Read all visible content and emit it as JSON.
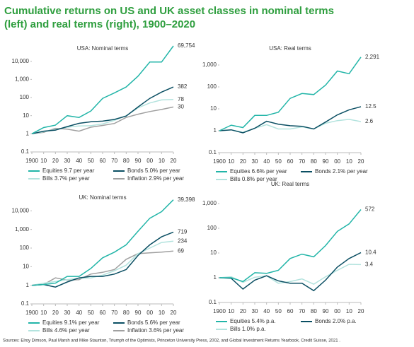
{
  "title": [
    "Cumulative returns on US and UK asset classes in nominal terms",
    "(left) and real terms (right), 1900–2020"
  ],
  "source": "Sources: Elroy Dimson, Paul Marsh and Mike Staunton, Triumph of the Optimists, Princeton University Press, 2002, and Global Investment Returns Yearbook, Credit Suisse, 2021 .",
  "chart_data": [
    {
      "type": "line",
      "title": "USA: Nominal terms",
      "log_scale": true,
      "x": [
        1900,
        1910,
        1920,
        1930,
        1940,
        1950,
        1960,
        1970,
        1980,
        1990,
        2000,
        2010,
        2020
      ],
      "xlim": [
        1900,
        2020
      ],
      "xticks": [
        {
          "value": 1900,
          "label": "1900"
        },
        {
          "value": 1910,
          "label": "10"
        },
        {
          "value": 1920,
          "label": "20"
        },
        {
          "value": 1930,
          "label": "30"
        },
        {
          "value": 1940,
          "label": "40"
        },
        {
          "value": 1950,
          "label": "50"
        },
        {
          "value": 1960,
          "label": "60"
        },
        {
          "value": 1970,
          "label": "70"
        },
        {
          "value": 1980,
          "label": "80"
        },
        {
          "value": 1990,
          "label": "90"
        },
        {
          "value": 2000,
          "label": "00"
        },
        {
          "value": 2010,
          "label": "10"
        },
        {
          "value": 2020,
          "label": "20"
        }
      ],
      "ylim": [
        0.1,
        100000
      ],
      "yticks": [
        0.1,
        1,
        10,
        100,
        {
          "value": 1000,
          "label": "1,000"
        },
        {
          "value": 10000,
          "label": "10,000"
        }
      ],
      "series": [
        {
          "name": "Equities  9.7 per year",
          "color": "#22b5a8",
          "values": [
            1,
            2.2,
            3,
            10,
            8,
            18,
            90,
            180,
            380,
            1500,
            9000,
            9000,
            69754
          ],
          "value_labels": [
            null,
            null,
            null,
            null,
            null,
            null,
            null,
            null,
            null,
            null,
            null,
            null,
            "69,754"
          ]
        },
        {
          "name": "Bonds  5.0% per year",
          "color": "#0b4f63",
          "values": [
            1,
            1.4,
            1.6,
            2.5,
            3.8,
            4.6,
            5,
            6.2,
            9.5,
            30,
            90,
            200,
            382
          ],
          "value_labels": [
            null,
            null,
            null,
            null,
            null,
            null,
            null,
            null,
            null,
            null,
            null,
            null,
            "382"
          ]
        },
        {
          "name": "Bills  3.7% per year",
          "color": "#b3e3de",
          "values": [
            1,
            1.3,
            1.7,
            2.3,
            2.7,
            2.8,
            3.5,
            5.5,
            10,
            27,
            50,
            74,
            78
          ],
          "value_labels": [
            null,
            null,
            null,
            null,
            null,
            null,
            null,
            null,
            null,
            null,
            null,
            null,
            "78"
          ]
        },
        {
          "name": "Inflation  2.9% per year",
          "color": "#a0a0a0",
          "values": [
            1,
            1.2,
            2.0,
            1.8,
            1.4,
            2.3,
            2.9,
            3.7,
            8,
            12,
            17,
            22,
            30
          ],
          "value_labels": [
            null,
            null,
            null,
            null,
            null,
            null,
            null,
            null,
            null,
            null,
            null,
            null,
            "30"
          ]
        }
      ]
    },
    {
      "type": "line",
      "title": "USA: Real terms",
      "log_scale": true,
      "x": [
        1900,
        1910,
        1920,
        1930,
        1940,
        1950,
        1960,
        1970,
        1980,
        1990,
        2000,
        2010,
        2020
      ],
      "xlim": [
        1900,
        2020
      ],
      "xticks": [
        {
          "value": 1900,
          "label": "1900"
        },
        {
          "value": 1910,
          "label": "10"
        },
        {
          "value": 1920,
          "label": "20"
        },
        {
          "value": 1930,
          "label": "30"
        },
        {
          "value": 1940,
          "label": "40"
        },
        {
          "value": 1950,
          "label": "50"
        },
        {
          "value": 1960,
          "label": "60"
        },
        {
          "value": 1970,
          "label": "70"
        },
        {
          "value": 1980,
          "label": "80"
        },
        {
          "value": 1990,
          "label": "90"
        },
        {
          "value": 2000,
          "label": "00"
        },
        {
          "value": 2010,
          "label": "10"
        },
        {
          "value": 2020,
          "label": "20"
        }
      ],
      "ylim": [
        0.1,
        10000
      ],
      "yticks": [
        0.1,
        1,
        10,
        100,
        {
          "value": 1000,
          "label": "1,000"
        }
      ],
      "series": [
        {
          "name": "Equities  6.6% per year",
          "color": "#22b5a8",
          "values": [
            1,
            1.8,
            1.4,
            5,
            5,
            7,
            30,
            50,
            45,
            120,
            530,
            400,
            2291
          ],
          "value_labels": [
            null,
            null,
            null,
            null,
            null,
            null,
            null,
            null,
            null,
            null,
            null,
            null,
            "2,291"
          ]
        },
        {
          "name": "Bonds  2.1% per year",
          "color": "#0b4f63",
          "values": [
            1,
            1.1,
            0.8,
            1.3,
            2.7,
            2.0,
            1.7,
            1.6,
            1.2,
            2.5,
            5.3,
            9,
            12.5
          ],
          "value_labels": [
            null,
            null,
            null,
            null,
            null,
            null,
            null,
            null,
            null,
            null,
            null,
            null,
            "12.5"
          ]
        },
        {
          "name": "Bills  0.8% per year",
          "color": "#b3e3de",
          "values": [
            1,
            1.1,
            0.85,
            1.3,
            1.9,
            1.2,
            1.2,
            1.5,
            1.2,
            2.2,
            2.9,
            3.3,
            2.6
          ],
          "value_labels": [
            null,
            null,
            null,
            null,
            null,
            null,
            null,
            null,
            null,
            null,
            null,
            null,
            "2.6"
          ]
        }
      ]
    },
    {
      "type": "line",
      "title": "UK: Nominal terms",
      "log_scale": true,
      "x": [
        1900,
        1910,
        1920,
        1930,
        1940,
        1950,
        1960,
        1970,
        1980,
        1990,
        2000,
        2010,
        2020
      ],
      "xlim": [
        1900,
        2020
      ],
      "xticks": [
        {
          "value": 1900,
          "label": "1900"
        },
        {
          "value": 1910,
          "label": "10"
        },
        {
          "value": 1920,
          "label": "20"
        },
        {
          "value": 1930,
          "label": "30"
        },
        {
          "value": 1940,
          "label": "40"
        },
        {
          "value": 1950,
          "label": "50"
        },
        {
          "value": 1960,
          "label": "60"
        },
        {
          "value": 1970,
          "label": "70"
        },
        {
          "value": 1980,
          "label": "80"
        },
        {
          "value": 1990,
          "label": "90"
        },
        {
          "value": 2000,
          "label": "00"
        },
        {
          "value": 2010,
          "label": "10"
        },
        {
          "value": 2020,
          "label": "20"
        }
      ],
      "ylim": [
        0.1,
        100000
      ],
      "yticks": [
        0.1,
        1,
        10,
        100,
        {
          "value": 1000,
          "label": "1,000"
        },
        {
          "value": 10000,
          "label": "10,000"
        }
      ],
      "series": [
        {
          "name": "Equities  9.1% per year",
          "color": "#22b5a8",
          "values": [
            1,
            1.1,
            1.3,
            3,
            3,
            8,
            30,
            60,
            150,
            800,
            4000,
            9000,
            39398
          ],
          "value_labels": [
            null,
            null,
            null,
            null,
            null,
            null,
            null,
            null,
            null,
            null,
            null,
            null,
            "39,398"
          ]
        },
        {
          "name": "Bonds  5.6% per year",
          "color": "#0b4f63",
          "values": [
            1,
            1.1,
            0.8,
            1.5,
            2.5,
            3.0,
            3.0,
            4,
            7,
            40,
            150,
            400,
            719
          ],
          "value_labels": [
            null,
            null,
            null,
            null,
            null,
            null,
            null,
            null,
            null,
            null,
            null,
            null,
            "719"
          ]
        },
        {
          "name": "Bills  4.6% per year",
          "color": "#b3e3de",
          "values": [
            1,
            1.3,
            1.6,
            2,
            2.4,
            2.5,
            3.5,
            6,
            12,
            50,
            100,
            200,
            234
          ],
          "value_labels": [
            null,
            null,
            null,
            null,
            null,
            null,
            null,
            null,
            null,
            null,
            null,
            null,
            "234"
          ]
        },
        {
          "name": "Inflation  3.6% per year",
          "color": "#a0a0a0",
          "values": [
            1,
            1.1,
            2.5,
            1.9,
            2.0,
            4,
            5,
            7,
            25,
            50,
            55,
            60,
            69
          ],
          "value_labels": [
            null,
            null,
            null,
            null,
            null,
            null,
            null,
            null,
            null,
            null,
            null,
            null,
            "69"
          ]
        }
      ]
    },
    {
      "type": "line",
      "title": "UK: Real terms",
      "log_scale": true,
      "x": [
        1900,
        1910,
        1920,
        1930,
        1940,
        1950,
        1960,
        1970,
        1980,
        1990,
        2000,
        2010,
        2020
      ],
      "xlim": [
        1900,
        2020
      ],
      "xticks": [
        {
          "value": 1900,
          "label": "1900"
        },
        {
          "value": 1910,
          "label": "10"
        },
        {
          "value": 1920,
          "label": "20"
        },
        {
          "value": 1930,
          "label": "30"
        },
        {
          "value": 1940,
          "label": "40"
        },
        {
          "value": 1950,
          "label": "50"
        },
        {
          "value": 1960,
          "label": "60"
        },
        {
          "value": 1970,
          "label": "70"
        },
        {
          "value": 1980,
          "label": "80"
        },
        {
          "value": 1990,
          "label": "90"
        },
        {
          "value": 2000,
          "label": "00"
        },
        {
          "value": 2010,
          "label": "10"
        },
        {
          "value": 2020,
          "label": "20"
        }
      ],
      "ylim": [
        0.1,
        10000
      ],
      "yticks": [
        0.1,
        1,
        10,
        100,
        {
          "value": 1000,
          "label": "1,000"
        }
      ],
      "series": [
        {
          "name": "Equities  5.4% p.a.",
          "color": "#22b5a8",
          "values": [
            1,
            1,
            0.7,
            1.6,
            1.5,
            2,
            6,
            9,
            7,
            20,
            75,
            150,
            572
          ],
          "value_labels": [
            null,
            null,
            null,
            null,
            null,
            null,
            null,
            null,
            null,
            null,
            null,
            null,
            "572"
          ]
        },
        {
          "name": "Bonds  2.0% p.a.",
          "color": "#0b4f63",
          "values": [
            1,
            0.95,
            0.35,
            0.8,
            1.2,
            0.75,
            0.6,
            0.6,
            0.3,
            0.8,
            2.7,
            6,
            10.4
          ],
          "value_labels": [
            null,
            null,
            null,
            null,
            null,
            null,
            null,
            null,
            null,
            null,
            null,
            null,
            "10.4"
          ]
        },
        {
          "name": "Bills  1.0% p.a.",
          "color": "#b3e3de",
          "values": [
            1,
            1.1,
            0.65,
            1.05,
            1.2,
            0.6,
            0.7,
            0.9,
            0.55,
            1.1,
            2,
            3.5,
            3.4
          ],
          "value_labels": [
            null,
            null,
            null,
            null,
            null,
            null,
            null,
            null,
            null,
            null,
            null,
            null,
            "3.4"
          ]
        }
      ]
    }
  ]
}
